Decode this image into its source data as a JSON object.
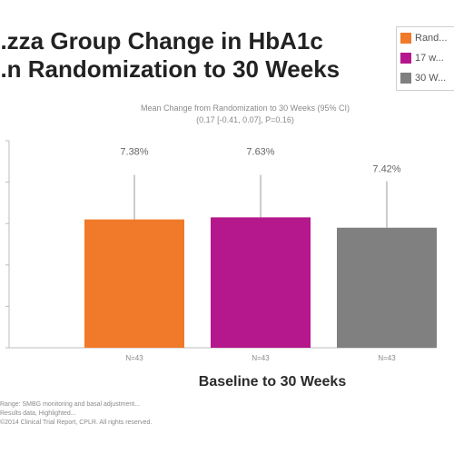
{
  "header": {
    "title_line1": "...zza Group Change in HbA1c",
    "title_line2": "...n Randomization to 30 Weeks",
    "subtitle_line1": "Mean Change from Randomization to 30 Weeks (95% CI)",
    "subtitle_line2": "(0.17 [-0.41, 0.07], P=0.16)"
  },
  "legend": {
    "items": [
      {
        "label": "Rand...",
        "color": "#f07a2a"
      },
      {
        "label": "17 w...",
        "color": "#b5178c"
      },
      {
        "label": "30 W...",
        "color": "#808080"
      }
    ]
  },
  "chart_data": {
    "type": "bar",
    "categories": [
      "N=43",
      "N=43",
      "N=43"
    ],
    "values": [
      7.38,
      7.63,
      7.42
    ],
    "value_labels": [
      "7.38%",
      "7.63%",
      "7.42%"
    ],
    "bar_heights_scale": [
      6.2,
      6.3,
      5.8
    ],
    "error_upper": [
      8.35,
      8.35,
      8.05
    ],
    "colors": [
      "#f07a2a",
      "#b5178c",
      "#808080"
    ],
    "ylim": [
      0,
      10
    ],
    "xlabel": "Baseline to 30 Weeks",
    "ylabel": "",
    "grid": false,
    "legend": "top-right"
  },
  "footnotes": [
    "Range: SMBG monitoring and basal adjustment...",
    "Results data, Highlighted...",
    "©2014 Clinical Trial Report, CPLR. All rights reserved."
  ]
}
